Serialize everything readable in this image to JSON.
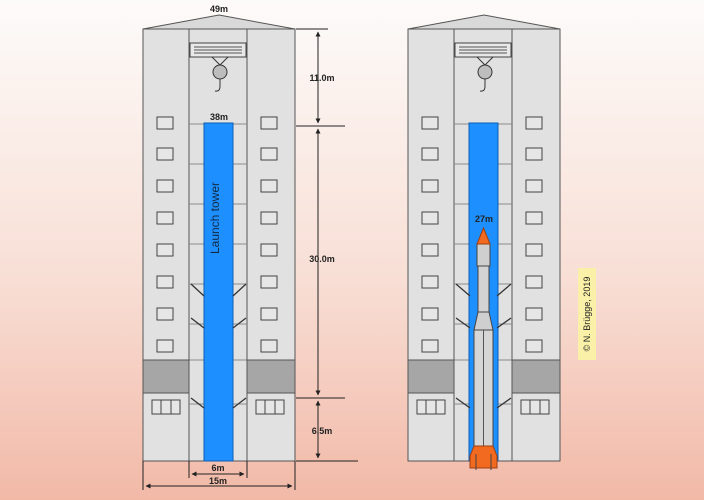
{
  "labels": {
    "roof_width": "49m",
    "tower_height": "38m",
    "rocket_height": "27m",
    "tower_label": "Launch tower",
    "top_section": "11.0m",
    "mid_section": "30.0m",
    "bottom_section": "6.5m",
    "tower_width": "6m",
    "hall_width": "15m"
  },
  "credit": "© N. Brügge, 2019",
  "colors": {
    "tower": "#1e8fff",
    "building": "#e1e1e1",
    "rocket_tip": "#f26a1f"
  },
  "icons": [
    "crane-hook-icon",
    "crane-hook-icon"
  ]
}
